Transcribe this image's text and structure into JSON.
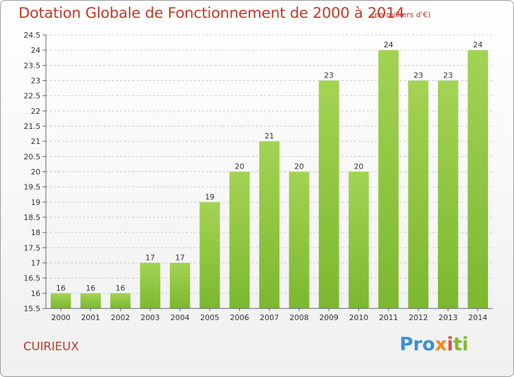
{
  "chart_data": {
    "type": "bar",
    "title": "Dotation Globale de Fonctionnement de 2000 à 2014",
    "subtitle": "(en milliers d'€)",
    "categories": [
      "2000",
      "2001",
      "2002",
      "2003",
      "2004",
      "2005",
      "2006",
      "2007",
      "2008",
      "2009",
      "2010",
      "2011",
      "2012",
      "2013",
      "2014"
    ],
    "values": [
      16,
      16,
      16,
      17,
      17,
      19,
      20,
      21,
      20,
      23,
      20,
      24,
      23,
      23,
      24
    ],
    "data_labels": [
      "16",
      "16",
      "16",
      "17",
      "17",
      "19",
      "20",
      "21",
      "20",
      "23",
      "20",
      "24",
      "23",
      "23",
      "24"
    ],
    "ylim": [
      15.5,
      24.5
    ],
    "yticks": [
      "15.5",
      "16",
      "16.5",
      "17",
      "17.5",
      "18",
      "18.5",
      "19",
      "19.5",
      "20",
      "20.5",
      "21",
      "21.5",
      "22",
      "22.5",
      "23",
      "23.5",
      "24",
      "24.5"
    ],
    "xlabel": "",
    "ylabel": "",
    "grid": true,
    "bar_color": "#7cb82f",
    "bar_color_light": "#a3d353",
    "title_color": "#c0392b"
  },
  "footer": {
    "commune": "CUIRIEUX",
    "logo_parts": [
      "Pro",
      "x",
      "i",
      "ti"
    ],
    "logo_text": "Proxiti"
  }
}
